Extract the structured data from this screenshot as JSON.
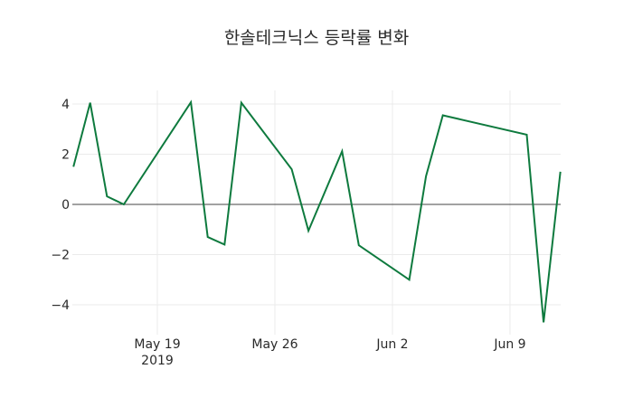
{
  "chart_data": {
    "type": "line",
    "title": "한솔테크닉스 등락률 변화",
    "xlabel": "",
    "ylabel": "",
    "ylim": [
      -5,
      4.6
    ],
    "grid": true,
    "legend": "none",
    "line_color": "#0e7a3e",
    "x_tick_labels": [
      "May 19\n2019",
      "May 26",
      "Jun 2",
      "Jun 9"
    ],
    "y_tick_labels": [
      "−4",
      "−2",
      "0",
      "2",
      "4"
    ],
    "y_ticks": [
      -4,
      -2,
      0,
      2,
      4
    ],
    "series": [
      {
        "name": "등락률",
        "x": [
          "2019-05-14",
          "2019-05-15",
          "2019-05-16",
          "2019-05-17",
          "2019-05-21",
          "2019-05-22",
          "2019-05-23",
          "2019-05-24",
          "2019-05-27",
          "2019-05-28",
          "2019-05-30",
          "2019-05-31",
          "2019-06-03",
          "2019-06-04",
          "2019-06-05",
          "2019-06-10",
          "2019-06-11",
          "2019-06-12"
        ],
        "values": [
          1.5,
          4.05,
          0.32,
          0.0,
          4.07,
          -1.3,
          -1.6,
          4.05,
          1.4,
          -1.05,
          2.12,
          -1.63,
          -3.0,
          1.12,
          3.55,
          2.78,
          -4.7,
          1.3
        ]
      }
    ]
  },
  "ticks": {
    "x": [
      {
        "label": "May 19",
        "sub": "2019",
        "date": "2019-05-19"
      },
      {
        "label": "May 26",
        "sub": "",
        "date": "2019-05-26"
      },
      {
        "label": "Jun 2",
        "sub": "",
        "date": "2019-06-02"
      },
      {
        "label": "Jun 9",
        "sub": "",
        "date": "2019-06-09"
      }
    ],
    "y": [
      {
        "label": "4",
        "value": 4
      },
      {
        "label": "2",
        "value": 2
      },
      {
        "label": "0",
        "value": 0
      },
      {
        "label": "−2",
        "value": -2
      },
      {
        "label": "−4",
        "value": -4
      }
    ]
  }
}
